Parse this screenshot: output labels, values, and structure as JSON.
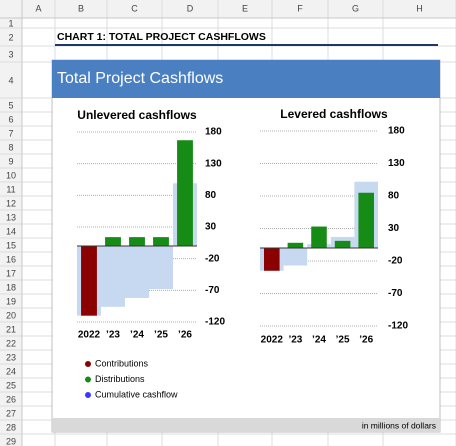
{
  "spreadsheet": {
    "columns": [
      "A",
      "B",
      "C",
      "D",
      "E",
      "F",
      "G",
      "H"
    ],
    "rows": [
      1,
      2,
      3,
      4,
      5,
      6,
      7,
      8,
      9,
      10,
      11,
      12,
      13,
      14,
      15,
      16,
      17,
      18,
      19,
      20,
      21,
      22,
      23,
      24,
      25,
      26,
      27,
      28,
      29
    ]
  },
  "header": "CHART 1: TOTAL PROJECT CASHFLOWS",
  "banner": "Total Project Cashflows",
  "footnote": "in millions of dollars",
  "chart_data": [
    {
      "type": "bar",
      "title": "Unlevered cashflows",
      "categories": [
        "2022",
        "’23",
        "’24",
        "’25",
        "’26"
      ],
      "series": [
        {
          "name": "Contributions",
          "type": "bar",
          "color": "#8b0000",
          "marker_color": "#8b0000",
          "values": [
            -110,
            null,
            null,
            null,
            null
          ]
        },
        {
          "name": "Distributions",
          "type": "bar",
          "color": "#168c16",
          "marker_color": "#168c16",
          "values": [
            null,
            14,
            14,
            14,
            167
          ]
        },
        {
          "name": "Cumulative cashflow",
          "type": "area",
          "color": "#c6d9f1",
          "marker_color": "#3a3aff",
          "values": [
            -110,
            -96,
            -82,
            -68,
            99
          ]
        }
      ],
      "ylim": [
        -120,
        180
      ],
      "yticks": [
        180,
        130,
        80,
        30,
        -20,
        -70,
        -120
      ],
      "grid": true
    },
    {
      "type": "bar",
      "title": "Levered cashflows",
      "categories": [
        "2022",
        "’23",
        "’24",
        "’25",
        "’26"
      ],
      "series": [
        {
          "type": "bar",
          "color": "#8b0000",
          "values": [
            -35,
            null,
            null,
            null,
            null
          ]
        },
        {
          "type": "bar",
          "color": "#168c16",
          "values": [
            null,
            8,
            33,
            11,
            85
          ]
        },
        {
          "type": "area",
          "color": "#c6d9f1",
          "values": [
            -35,
            -27,
            6,
            17,
            102
          ]
        }
      ],
      "ylim": [
        -120,
        180
      ],
      "yticks": [
        180,
        130,
        80,
        30,
        -20,
        -70,
        -120
      ],
      "grid": true
    }
  ]
}
